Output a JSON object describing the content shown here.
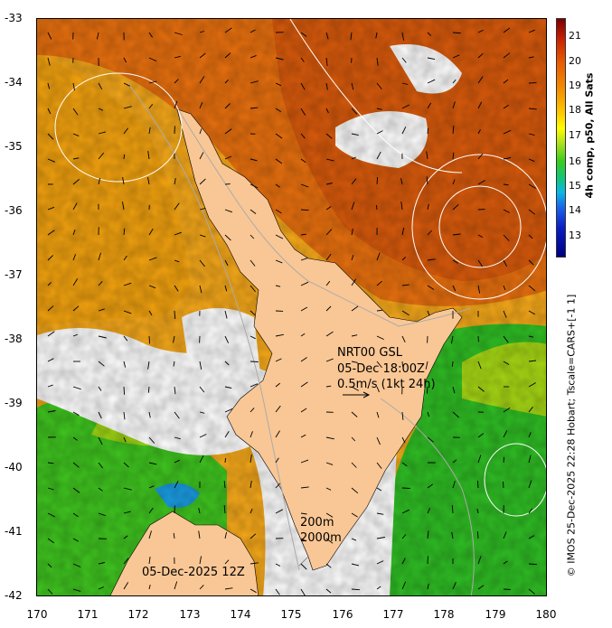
{
  "map": {
    "date_label": "05-Dec-2025 12Z",
    "product": "NRT00 GSL",
    "current_time": "05-Dec 18:00Z",
    "current_scale": "0.5m/s (1kt 24h)",
    "contour_200": "200m",
    "contour_2000": "2000m"
  },
  "axes": {
    "y_ticks": [
      "-33",
      "-34",
      "-35",
      "-36",
      "-37",
      "-38",
      "-39",
      "-40",
      "-41",
      "-42"
    ],
    "x_ticks": [
      "170",
      "171",
      "172",
      "173",
      "174",
      "175",
      "176",
      "177",
      "178",
      "179",
      "180"
    ]
  },
  "colorbar": {
    "title": "4h comp, p50, All Sats",
    "labels": [
      "21",
      "20",
      "19",
      "18",
      "17",
      "16",
      "15",
      "14",
      "13"
    ]
  },
  "credit": "© IMOS 25-Dec-2025 22:28 Hobart; Tscale=CARS+[-1 1]",
  "colors": {
    "land": "#f9c795",
    "warm": "#e8650a",
    "mid": "#f5a20e",
    "cool": "#3fc628",
    "cold": "#1ea3e0"
  }
}
